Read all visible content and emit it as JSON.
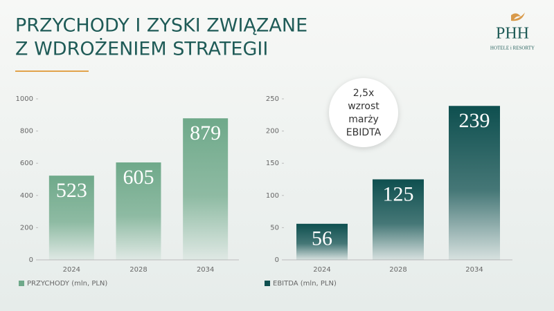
{
  "title": [
    "PRZYCHODY I ZYSKI ZWIĄZANE",
    "Z WDROŻENIEM STRATEGII"
  ],
  "logo": {
    "name": "PHH",
    "tagline": "HOTELE i RESORTY"
  },
  "chart_data": [
    {
      "type": "bar",
      "categories": [
        "2024",
        "2028",
        "2034"
      ],
      "series": [
        {
          "name": "PRZYCHODY (mln, PLN)",
          "color": "#6fa98a",
          "values": [
            523,
            605,
            879
          ]
        }
      ],
      "ylim": [
        0,
        1000
      ],
      "yticks": [
        0,
        200,
        400,
        600,
        800,
        1000
      ]
    },
    {
      "type": "bar",
      "categories": [
        "2024",
        "2028",
        "2034"
      ],
      "series": [
        {
          "name": "EBITDA (mln, PLN)",
          "color": "#0e4f4f",
          "values": [
            56,
            125,
            239
          ]
        }
      ],
      "ylim": [
        0,
        250
      ],
      "yticks": [
        0,
        50,
        100,
        150,
        200,
        250
      ],
      "annotation": [
        "2,5x",
        "wzrost",
        "marży",
        "EBIDTA"
      ]
    }
  ]
}
